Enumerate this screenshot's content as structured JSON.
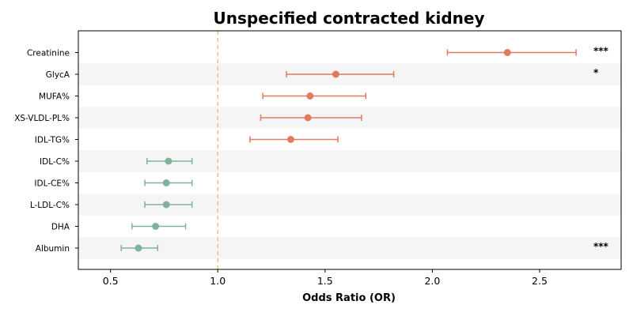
{
  "chart_data": {
    "type": "scatter",
    "subtype": "forest-plot",
    "title": "Unspecified contracted kidney",
    "xlabel": "Odds Ratio (OR)",
    "ylabel": "",
    "xlim": [
      0.35,
      2.88
    ],
    "xticks": [
      0.5,
      1.0,
      1.5,
      2.0,
      2.5
    ],
    "xtick_labels": [
      "0.5",
      "1.0",
      "1.5",
      "2.0",
      "2.5"
    ],
    "reference_line": 1.0,
    "grid": false,
    "row_shading": "alternating",
    "colors": {
      "risk": "#e07b5f",
      "protective": "#7fb39a",
      "reference": "#f0c080",
      "band": "#f5f5f5"
    },
    "rows": [
      {
        "label": "Creatinine",
        "or": 2.35,
        "ci_low": 2.07,
        "ci_high": 2.67,
        "sig": "***",
        "group": "risk"
      },
      {
        "label": "GlycA",
        "or": 1.55,
        "ci_low": 1.32,
        "ci_high": 1.82,
        "sig": "*",
        "group": "risk"
      },
      {
        "label": "MUFA%",
        "or": 1.43,
        "ci_low": 1.21,
        "ci_high": 1.69,
        "sig": "",
        "group": "risk"
      },
      {
        "label": "XS-VLDL-PL%",
        "or": 1.42,
        "ci_low": 1.2,
        "ci_high": 1.67,
        "sig": "",
        "group": "risk"
      },
      {
        "label": "IDL-TG%",
        "or": 1.34,
        "ci_low": 1.15,
        "ci_high": 1.56,
        "sig": "",
        "group": "risk"
      },
      {
        "label": "IDL-C%",
        "or": 0.77,
        "ci_low": 0.67,
        "ci_high": 0.88,
        "sig": "",
        "group": "protective"
      },
      {
        "label": "IDL-CE%",
        "or": 0.76,
        "ci_low": 0.66,
        "ci_high": 0.88,
        "sig": "",
        "group": "protective"
      },
      {
        "label": "L-LDL-C%",
        "or": 0.76,
        "ci_low": 0.66,
        "ci_high": 0.88,
        "sig": "",
        "group": "protective"
      },
      {
        "label": "DHA",
        "or": 0.71,
        "ci_low": 0.6,
        "ci_high": 0.85,
        "sig": "",
        "group": "protective"
      },
      {
        "label": "Albumin",
        "or": 0.63,
        "ci_low": 0.55,
        "ci_high": 0.72,
        "sig": "***",
        "group": "protective"
      }
    ]
  }
}
